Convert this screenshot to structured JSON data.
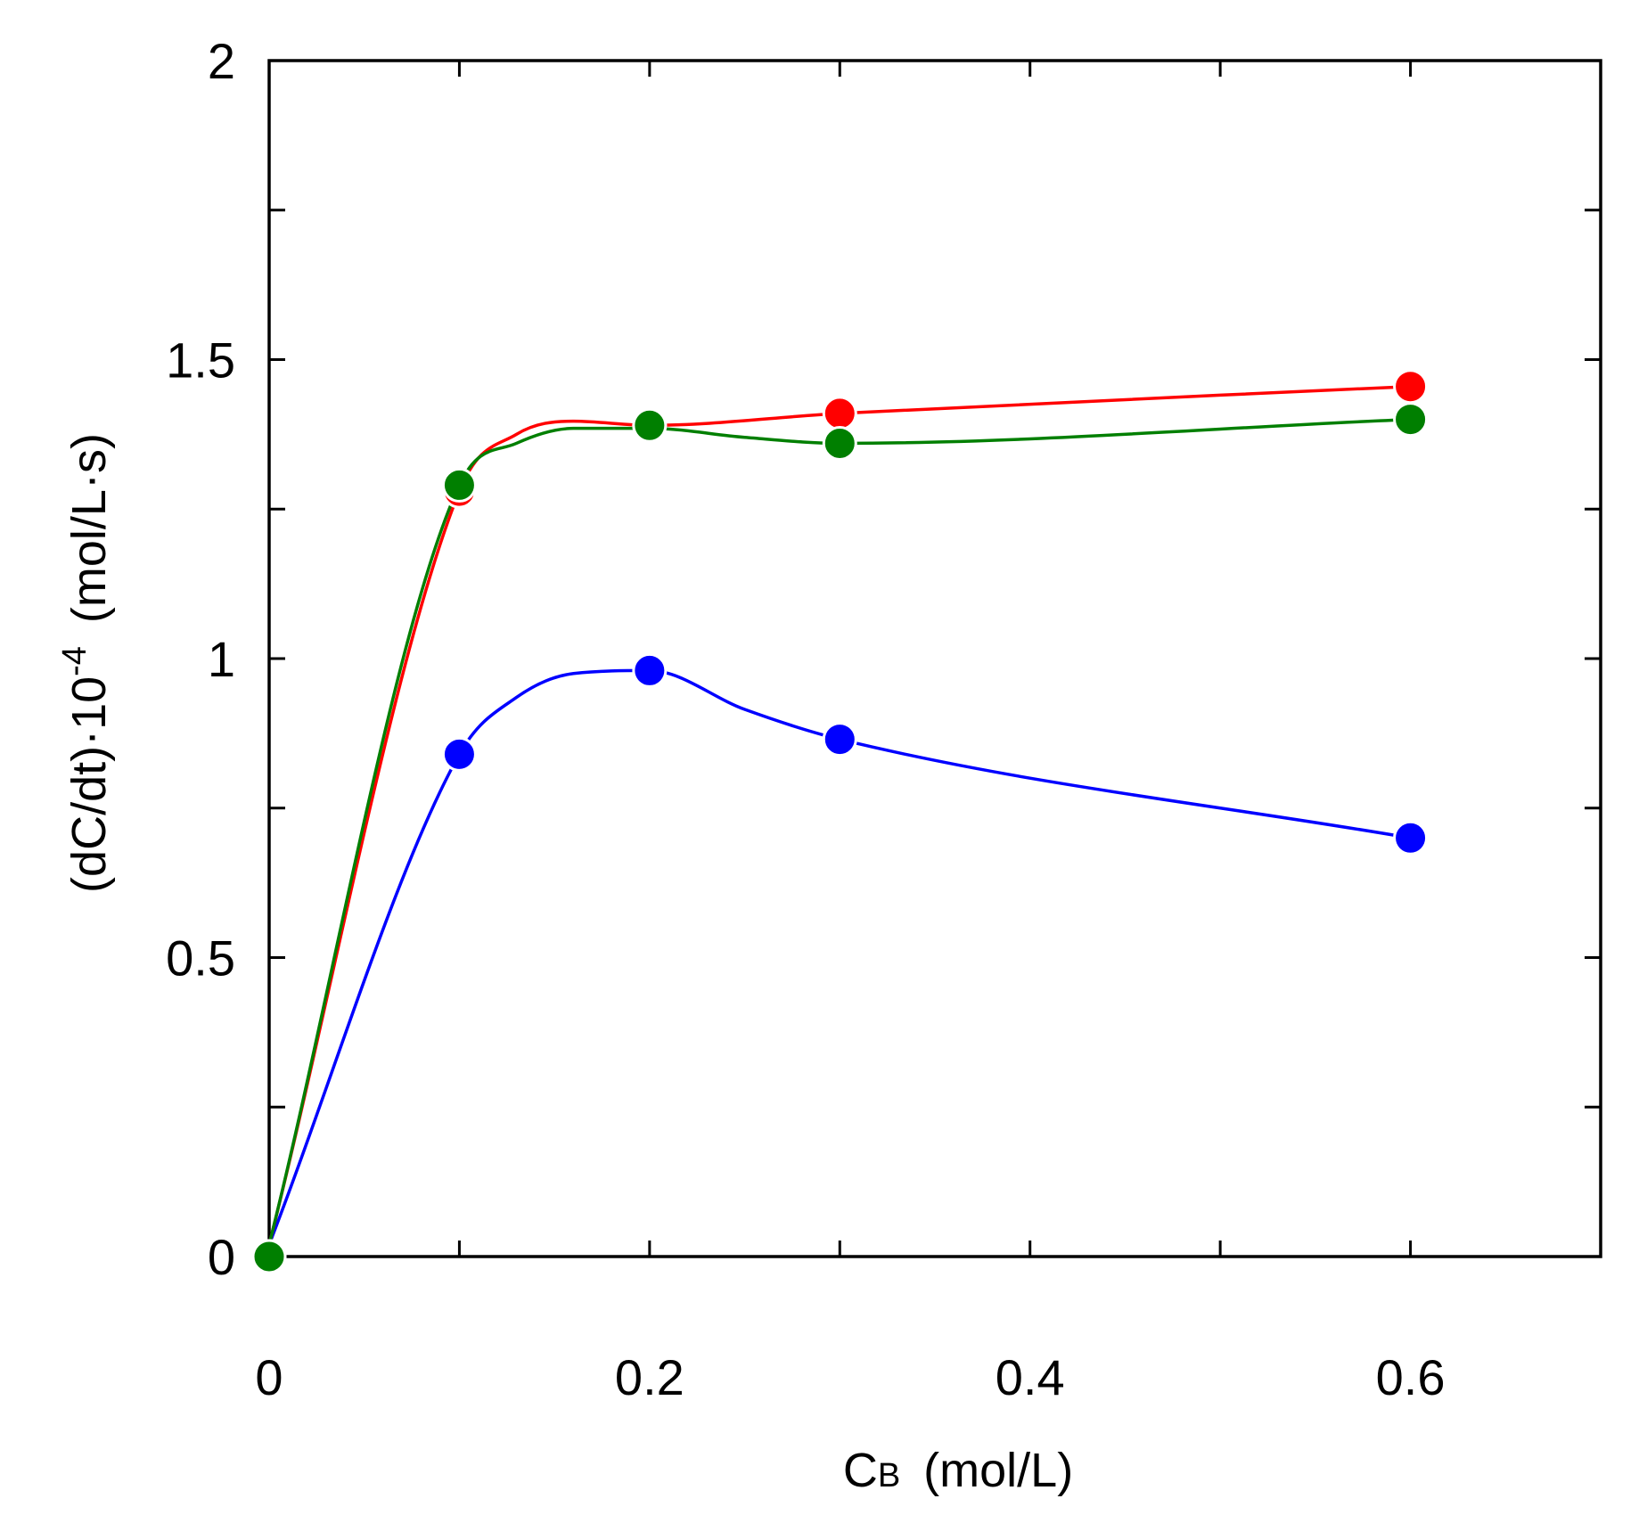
{
  "chart_data": {
    "type": "line",
    "title": "",
    "xlabel": {
      "main": "C",
      "subscript": "B",
      "units": "(mol/L)"
    },
    "ylabel": {
      "prefix": "(dC/dt)·10",
      "exponent": "-4",
      "units": "(mol/L·s)"
    },
    "xlim": [
      0,
      0.7
    ],
    "ylim": [
      0,
      2
    ],
    "x_ticks": [
      0,
      0.2,
      0.4,
      0.6
    ],
    "x_tick_labels": [
      "0",
      "0.2",
      "0.4",
      "0.6"
    ],
    "x_minor_ticks": [
      0.1,
      0.3,
      0.5,
      0.7
    ],
    "y_ticks": [
      0,
      0.5,
      1,
      1.5,
      2
    ],
    "y_tick_labels": [
      "0",
      "0.5",
      "1",
      "1.5",
      "2"
    ],
    "y_minor_ticks": [
      0.25,
      0.75,
      1.25,
      1.75
    ],
    "grid": false,
    "series": [
      {
        "name": "blue",
        "color": "#0000ff",
        "x": [
          0,
          0.1,
          0.2,
          0.3,
          0.6
        ],
        "y": [
          0,
          0.84,
          0.98,
          0.865,
          0.7
        ],
        "curve_x": [
          0,
          0.1,
          0.13,
          0.16,
          0.2,
          0.25,
          0.3,
          0.6
        ],
        "curve_y": [
          0.02,
          0.84,
          0.935,
          0.975,
          0.98,
          0.915,
          0.865,
          0.7
        ]
      },
      {
        "name": "red",
        "color": "#ff0000",
        "x": [
          0,
          0.1,
          0.2,
          0.3,
          0.6
        ],
        "y": [
          0,
          1.28,
          1.39,
          1.41,
          1.455
        ],
        "curve_x": [
          0,
          0.1,
          0.13,
          0.16,
          0.2,
          0.3,
          0.6
        ],
        "curve_y": [
          0.02,
          1.28,
          1.375,
          1.397,
          1.39,
          1.41,
          1.455
        ]
      },
      {
        "name": "green",
        "color": "#007f00",
        "x": [
          0,
          0.1,
          0.2,
          0.3,
          0.6
        ],
        "y": [
          0,
          1.29,
          1.39,
          1.36,
          1.4
        ],
        "curve_x": [
          0,
          0.1,
          0.13,
          0.16,
          0.2,
          0.25,
          0.3,
          0.6
        ],
        "curve_y": [
          0.02,
          1.29,
          1.36,
          1.385,
          1.385,
          1.37,
          1.36,
          1.4
        ]
      }
    ]
  }
}
